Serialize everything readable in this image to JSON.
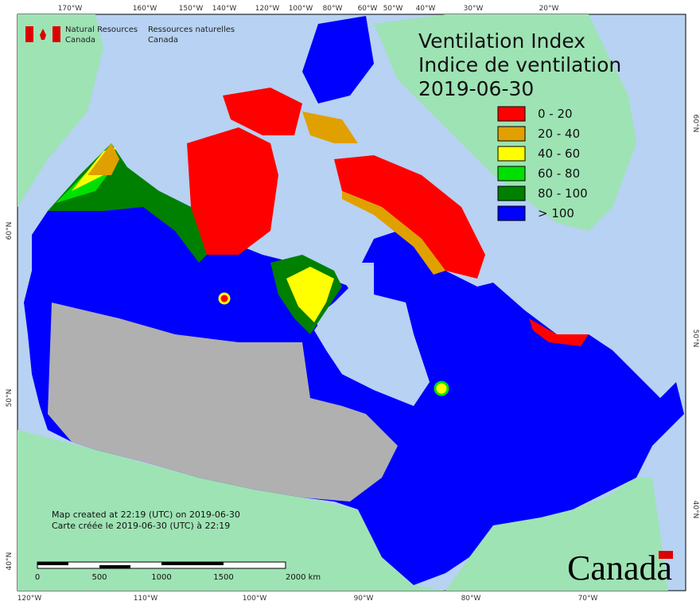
{
  "title": {
    "line1": "Ventilation Index",
    "line2": "Indice de ventilation",
    "date": "2019-06-30"
  },
  "agency": {
    "en_line1": "Natural Resources",
    "en_line2": "Canada",
    "fr_line1": "Ressources naturelles",
    "fr_line2": "Canada"
  },
  "legend": [
    {
      "label": "0 - 20",
      "color": "#ff0000"
    },
    {
      "label": "20 - 40",
      "color": "#e0a000"
    },
    {
      "label": "40 - 60",
      "color": "#ffff00"
    },
    {
      "label": "60 - 80",
      "color": "#00e000"
    },
    {
      "label": "80 - 100",
      "color": "#008000"
    },
    {
      "label": "> 100",
      "color": "#0000ff"
    }
  ],
  "footnote": {
    "en": "Map created at 22:19 (UTC) on 2019-06-30",
    "fr": "Carte créée le 2019-06-30 (UTC) à 22:19"
  },
  "scale_bar": {
    "labels": [
      "0",
      "500",
      "1000",
      "1500",
      "2000 km"
    ]
  },
  "graticule": {
    "top": [
      "170°W",
      "160°W",
      "150°W",
      "140°W",
      "120°W",
      "100°W",
      "80°W",
      "60°W",
      "50°W",
      "40°W",
      "30°W",
      "20°W"
    ],
    "bottom": [
      "120°W",
      "110°W",
      "100°W",
      "90°W",
      "80°W",
      "70°W"
    ],
    "left": [
      "60°N",
      "50°N",
      "40°N"
    ],
    "right": [
      "60°N",
      "50°N",
      "40°N"
    ]
  },
  "wordmark": "Canada"
}
